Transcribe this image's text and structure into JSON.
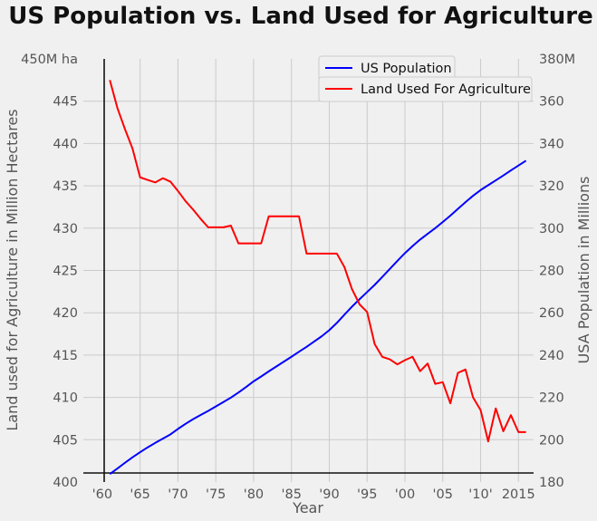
{
  "chart_data": {
    "type": "line",
    "title": "US Population vs. Land Used for Agriculture",
    "xlabel": "Year",
    "ylabel_left": "Land used for Agriculture in Million Hectares",
    "ylabel_right": "USA Population in Millions",
    "xlim": [
      1957.5,
      2017
    ],
    "ylim_left": [
      400,
      450
    ],
    "ylim_right": [
      180,
      380
    ],
    "x_ticks": [
      {
        "value": 1960,
        "label": "'60"
      },
      {
        "value": 1965,
        "label": "'65"
      },
      {
        "value": 1970,
        "label": "'70"
      },
      {
        "value": 1975,
        "label": "'75"
      },
      {
        "value": 1980,
        "label": "'80"
      },
      {
        "value": 1985,
        "label": "'85"
      },
      {
        "value": 1990,
        "label": "'90"
      },
      {
        "value": 1995,
        "label": "'95"
      },
      {
        "value": 2000,
        "label": "'00"
      },
      {
        "value": 2005,
        "label": "'05"
      },
      {
        "value": 2010,
        "label": "'10'"
      },
      {
        "value": 2015,
        "label": "2015"
      }
    ],
    "y_left_ticks": [
      {
        "value": 400,
        "label": "400"
      },
      {
        "value": 405,
        "label": "405"
      },
      {
        "value": 410,
        "label": "410"
      },
      {
        "value": 415,
        "label": "415"
      },
      {
        "value": 420,
        "label": "420"
      },
      {
        "value": 425,
        "label": "425"
      },
      {
        "value": 430,
        "label": "430"
      },
      {
        "value": 435,
        "label": "435"
      },
      {
        "value": 440,
        "label": "440"
      },
      {
        "value": 445,
        "label": "445"
      },
      {
        "value": 450,
        "label": "450M ha"
      }
    ],
    "y_right_ticks": [
      {
        "value": 180,
        "label": "180"
      },
      {
        "value": 200,
        "label": "200"
      },
      {
        "value": 220,
        "label": "220"
      },
      {
        "value": 240,
        "label": "240"
      },
      {
        "value": 260,
        "label": "260"
      },
      {
        "value": 280,
        "label": "280"
      },
      {
        "value": 300,
        "label": "300"
      },
      {
        "value": 320,
        "label": "320"
      },
      {
        "value": 340,
        "label": "340"
      },
      {
        "value": 360,
        "label": "360"
      },
      {
        "value": 380,
        "label": "380M"
      }
    ],
    "grid": true,
    "legend_position": "top-right",
    "series": [
      {
        "name": "US Population",
        "axis": "right",
        "color": "#0000ff",
        "x": [
          1961,
          1962,
          1963,
          1964,
          1965,
          1966,
          1967,
          1968,
          1969,
          1970,
          1971,
          1972,
          1973,
          1974,
          1975,
          1976,
          1977,
          1978,
          1979,
          1980,
          1981,
          1982,
          1983,
          1984,
          1985,
          1986,
          1987,
          1988,
          1989,
          1990,
          1991,
          1992,
          1993,
          1994,
          1995,
          1996,
          1997,
          1998,
          1999,
          2000,
          2001,
          2002,
          2003,
          2004,
          2005,
          2006,
          2007,
          2008,
          2009,
          2010,
          2011,
          2012,
          2013,
          2014,
          2015,
          2016
        ],
        "y": [
          183.8,
          186.4,
          189.1,
          191.7,
          194.1,
          196.4,
          198.5,
          200.5,
          202.5,
          205.1,
          207.5,
          209.7,
          211.7,
          213.6,
          215.7,
          217.8,
          219.9,
          222.3,
          224.9,
          227.6,
          229.9,
          232.3,
          234.6,
          236.9,
          239.2,
          241.6,
          243.9,
          246.4,
          248.9,
          251.8,
          255.2,
          259.1,
          262.9,
          266.4,
          269.8,
          273.2,
          276.9,
          280.7,
          284.5,
          288.2,
          291.5,
          294.6,
          297.3,
          300.0,
          302.9,
          305.9,
          309.1,
          312.3,
          315.3,
          318.0,
          320.3,
          322.6,
          324.9,
          327.3,
          329.6,
          331.9
        ]
      },
      {
        "name": "Land Used For Agriculture",
        "axis": "left",
        "color": "#ff0000",
        "x": [
          1961,
          1962,
          1963,
          1964,
          1965,
          1966,
          1967,
          1968,
          1969,
          1970,
          1971,
          1972,
          1973,
          1974,
          1975,
          1976,
          1977,
          1978,
          1979,
          1980,
          1981,
          1982,
          1983,
          1984,
          1985,
          1986,
          1987,
          1988,
          1989,
          1990,
          1991,
          1992,
          1993,
          1994,
          1995,
          1996,
          1997,
          1998,
          1999,
          2000,
          2001,
          2002,
          2003,
          2004,
          2005,
          2006,
          2007,
          2008,
          2009,
          2010,
          2011,
          2012,
          2013,
          2014,
          2015,
          2016
        ],
        "y": [
          447.5,
          444.2,
          441.7,
          439.4,
          436.0,
          435.7,
          435.4,
          435.9,
          435.5,
          434.4,
          433.2,
          432.2,
          431.1,
          430.1,
          430.1,
          430.1,
          430.3,
          428.2,
          428.2,
          428.2,
          428.2,
          431.4,
          431.4,
          431.4,
          431.4,
          431.4,
          427.0,
          427.0,
          427.0,
          427.0,
          427.0,
          425.4,
          422.8,
          421.0,
          420.1,
          416.3,
          414.8,
          414.5,
          413.9,
          414.4,
          414.8,
          413.1,
          414.0,
          411.6,
          411.8,
          409.3,
          412.9,
          413.3,
          410.0,
          408.5,
          404.8,
          408.7,
          406.0,
          407.9,
          405.9,
          405.9
        ]
      }
    ]
  }
}
